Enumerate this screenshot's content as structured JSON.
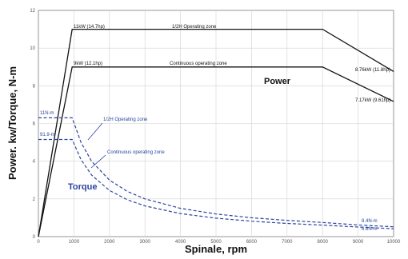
{
  "chart_data": {
    "type": "line",
    "title": "",
    "xlabel": "Spinale, rpm",
    "ylabel": "Power. kw/Torque, N-m",
    "xlim": [
      0,
      10000
    ],
    "ylim": [
      0,
      12
    ],
    "x_ticks": [
      "0",
      "1000",
      "2000",
      "3000",
      "4000",
      "5000",
      "6000",
      "7000",
      "8000",
      "9000",
      "10000"
    ],
    "y_ticks": [
      "0",
      "2",
      "4",
      "6",
      "8",
      "10",
      "12"
    ],
    "grid": true,
    "colors": {
      "power": "#111111",
      "torque": "#2c44a0",
      "grid": "#d2d2d2"
    },
    "series": [
      {
        "name": "1/2H Operating zone",
        "group": "Power",
        "style": "solid",
        "x": [
          0,
          950,
          8000,
          10000
        ],
        "y": [
          0,
          11,
          11,
          8.76
        ]
      },
      {
        "name": "Continuous operating zone",
        "group": "Power",
        "style": "solid",
        "x": [
          0,
          950,
          8000,
          10000
        ],
        "y": [
          0,
          9,
          9,
          7.17
        ]
      },
      {
        "name": "1/2H Operating zone",
        "group": "Torque",
        "style": "dashed",
        "x": [
          0,
          950,
          1200,
          1500,
          2000,
          2500,
          3000,
          4000,
          5000,
          6000,
          7000,
          8000,
          9000,
          10000
        ],
        "y": [
          6.3,
          6.3,
          4.99,
          3.99,
          3.0,
          2.4,
          2.0,
          1.5,
          1.2,
          1.0,
          0.86,
          0.75,
          0.62,
          0.52
        ]
      },
      {
        "name": "Continuous operating zone",
        "group": "Torque",
        "style": "dashed",
        "x": [
          0,
          950,
          1200,
          1500,
          2000,
          2500,
          3000,
          4000,
          5000,
          6000,
          7000,
          8000,
          9000,
          10000
        ],
        "y": [
          5.15,
          5.15,
          4.08,
          3.26,
          2.45,
          1.96,
          1.63,
          1.22,
          0.98,
          0.82,
          0.7,
          0.61,
          0.51,
          0.42
        ]
      }
    ],
    "annotations": {
      "power_label": "Power",
      "torque_label": "Torque",
      "p_half_start": "11kW (14.7hp)",
      "p_half_zone": "1/2H Operating zone",
      "p_half_end": "8.76kW (11.8hp)",
      "p_cont_start": "9kW (12.1hp)",
      "p_cont_zone": "Continuous operating zone",
      "p_cont_end": "7.17kW (9.61hp)",
      "t_half_start": "11N-m",
      "t_half_zone": "1/2H Operating zone",
      "t_half_end": "8.4N-m",
      "t_cont_start": "91.9-m",
      "t_cont_zone": "Continuous operating zone",
      "t_cont_end": "6.8N-m"
    }
  }
}
